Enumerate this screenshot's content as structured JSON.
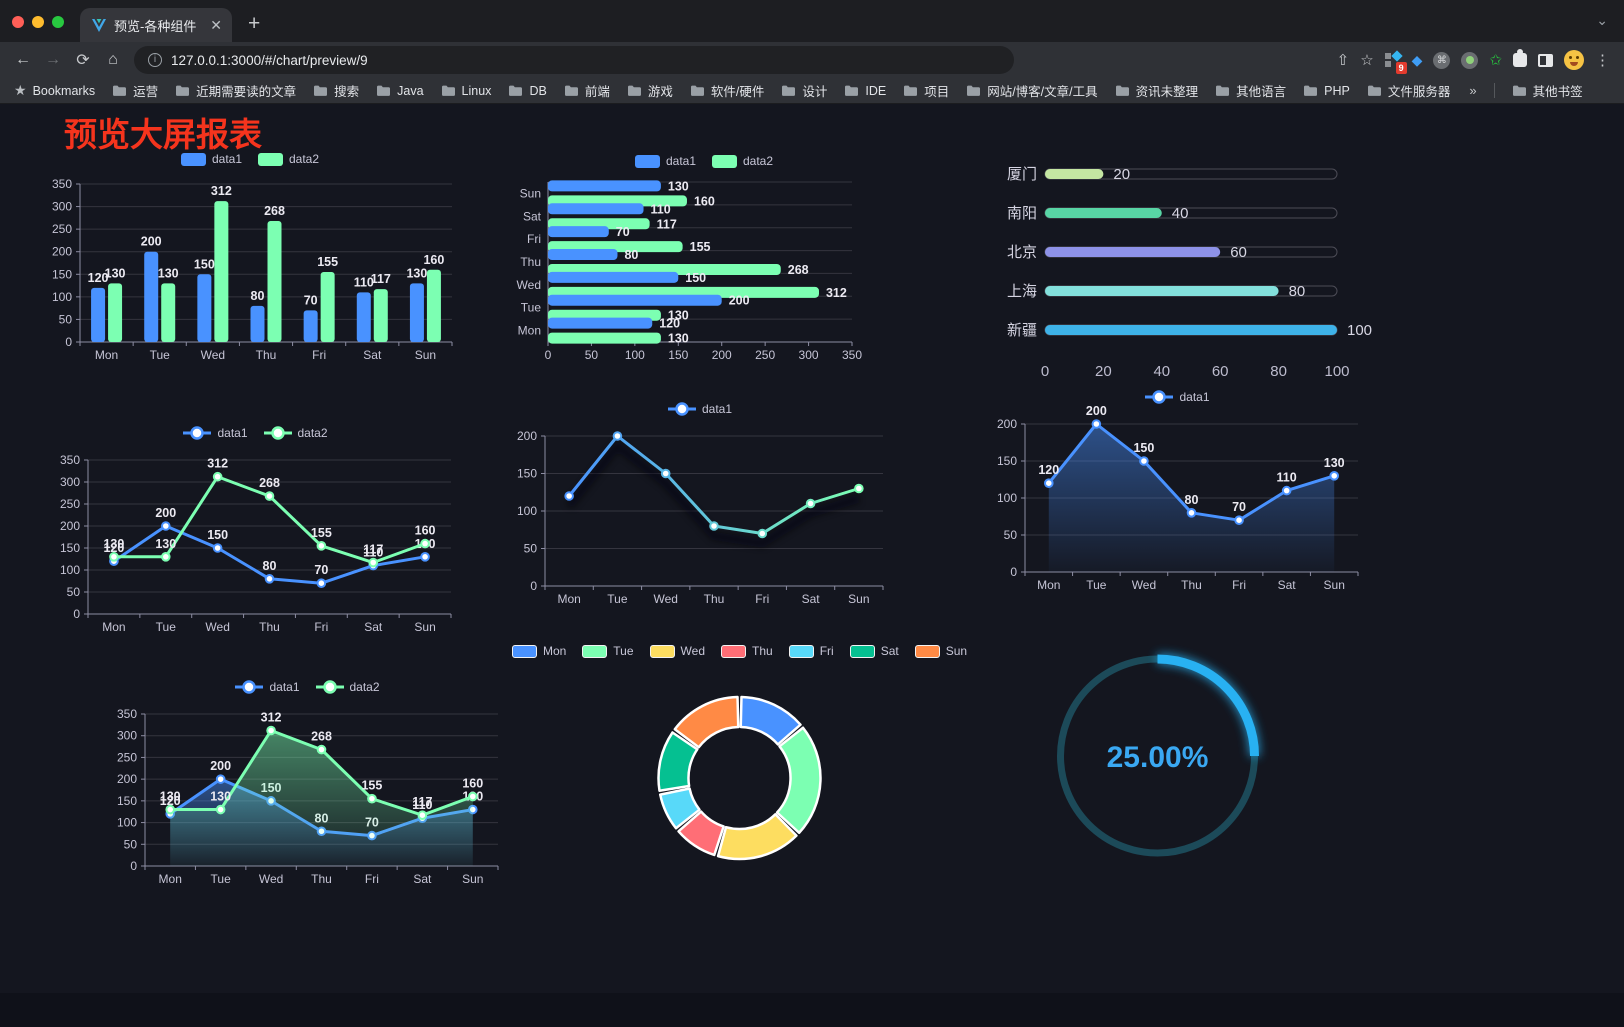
{
  "browser": {
    "tab_title": "预览-各种组件",
    "url": "127.0.0.1:3000/#/chart/preview/9",
    "bookmarks_label": "Bookmarks",
    "bookmarks": [
      "运营",
      "近期需要读的文章",
      "搜索",
      "Java",
      "Linux",
      "DB",
      "前端",
      "游戏",
      "软件/硬件",
      "设计",
      "IDE",
      "项目",
      "网站/博客/文章/工具",
      "资讯未整理",
      "其他语言",
      "PHP",
      "文件服务器"
    ],
    "bookmarks_overflow": "»",
    "other_bookmarks": "其他书签",
    "extension_badge": "9"
  },
  "page": {
    "title": "预览大屏报表",
    "title_color": "#f5341d"
  },
  "chart_data": [
    {
      "id": "grouped-bar",
      "type": "bar",
      "legend": "rect",
      "categories": [
        "Mon",
        "Tue",
        "Wed",
        "Thu",
        "Fri",
        "Sat",
        "Sun"
      ],
      "series": [
        {
          "name": "data1",
          "color": "#4992ff",
          "values": [
            120,
            200,
            150,
            80,
            70,
            110,
            130
          ]
        },
        {
          "name": "data2",
          "color": "#7cffb2",
          "values": [
            130,
            130,
            312,
            268,
            155,
            117,
            160
          ]
        }
      ],
      "ylim": [
        0,
        350
      ],
      "ystep": 50,
      "labels": true,
      "grid": true
    },
    {
      "id": "horizontal-bar",
      "type": "bar",
      "orientation": "horizontal",
      "legend": "rect",
      "categories": [
        "Mon",
        "Tue",
        "Wed",
        "Thu",
        "Fri",
        "Sat",
        "Sun"
      ],
      "series": [
        {
          "name": "data1",
          "color": "#4992ff",
          "values": [
            120,
            200,
            150,
            80,
            70,
            110,
            130
          ]
        },
        {
          "name": "data2",
          "color": "#7cffb2",
          "values": [
            130,
            130,
            312,
            268,
            155,
            117,
            160
          ]
        }
      ],
      "xlim": [
        0,
        350
      ],
      "xstep": 50,
      "labels": true,
      "grid": true
    },
    {
      "id": "progress-bars",
      "type": "bar",
      "orientation": "progress",
      "categories": [
        "厦门",
        "南阳",
        "北京",
        "上海",
        "新疆"
      ],
      "values": [
        20,
        40,
        60,
        80,
        100
      ],
      "colors": [
        "#c4e6a2",
        "#58d5a5",
        "#8e92e8",
        "#83e0dc",
        "#3eb2e8"
      ],
      "xlim": [
        0,
        100
      ],
      "xstep": 20,
      "labels": true
    },
    {
      "id": "line-two-series",
      "type": "line",
      "legend": "circle",
      "categories": [
        "Mon",
        "Tue",
        "Wed",
        "Thu",
        "Fri",
        "Sat",
        "Sun"
      ],
      "series": [
        {
          "name": "data1",
          "color": "#4992ff",
          "values": [
            120,
            200,
            150,
            80,
            70,
            110,
            130
          ]
        },
        {
          "name": "data2",
          "color": "#7cffb2",
          "values": [
            130,
            130,
            312,
            268,
            155,
            117,
            160
          ]
        }
      ],
      "ylim": [
        0,
        350
      ],
      "ystep": 50,
      "labels": true,
      "grid": true
    },
    {
      "id": "gradient-line",
      "type": "line",
      "legend": "circle",
      "shadow": true,
      "categories": [
        "Mon",
        "Tue",
        "Wed",
        "Thu",
        "Fri",
        "Sat",
        "Sun"
      ],
      "series": [
        {
          "name": "data1",
          "gradient": [
            "#4992ff",
            "#7cffb2"
          ],
          "values": [
            120,
            200,
            150,
            80,
            70,
            110,
            130
          ]
        }
      ],
      "ylim": [
        0,
        200
      ],
      "ystep": 50,
      "labels": false,
      "grid": true
    },
    {
      "id": "area-line",
      "type": "area",
      "legend": "circle",
      "categories": [
        "Mon",
        "Tue",
        "Wed",
        "Thu",
        "Fri",
        "Sat",
        "Sun"
      ],
      "series": [
        {
          "name": "data1",
          "color": "#4992ff",
          "values": [
            120,
            200,
            150,
            80,
            70,
            110,
            130
          ]
        }
      ],
      "ylim": [
        0,
        200
      ],
      "ystep": 50,
      "labels": true,
      "grid": true
    },
    {
      "id": "area-two-series",
      "type": "area",
      "legend": "circle",
      "categories": [
        "Mon",
        "Tue",
        "Wed",
        "Thu",
        "Fri",
        "Sat",
        "Sun"
      ],
      "series": [
        {
          "name": "data1",
          "color": "#4992ff",
          "values": [
            120,
            200,
            150,
            80,
            70,
            110,
            130
          ]
        },
        {
          "name": "data2",
          "color": "#7cffb2",
          "values": [
            130,
            130,
            312,
            268,
            155,
            117,
            160
          ]
        }
      ],
      "ylim": [
        0,
        350
      ],
      "ystep": 50,
      "labels": true,
      "grid": true
    },
    {
      "id": "donut",
      "type": "pie",
      "legend": "rect-bordered",
      "categories": [
        "Mon",
        "Tue",
        "Wed",
        "Thu",
        "Fri",
        "Sat",
        "Sun"
      ],
      "values": [
        120,
        200,
        150,
        80,
        70,
        110,
        130
      ],
      "colors": [
        "#4992ff",
        "#7cffb2",
        "#fddd60",
        "#ff6e76",
        "#58d9f9",
        "#05c091",
        "#ff8a45"
      ],
      "inner_radius_ratio": 0.63
    },
    {
      "id": "gauge",
      "type": "gauge",
      "value": 25,
      "max": 100,
      "display": "25.00%",
      "track_color": "#1c4a59",
      "progress_color": "#28b1f2",
      "text_color": "#3aa8f2"
    }
  ]
}
